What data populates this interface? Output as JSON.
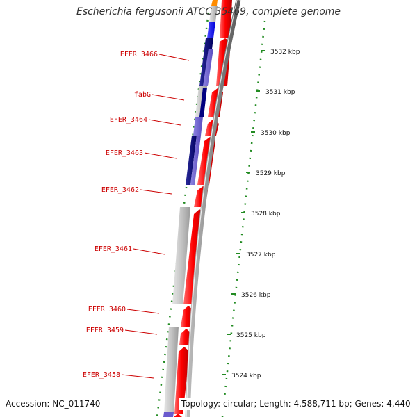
{
  "title": "Escherichia fergusonii ATCC 35469, complete genome",
  "accession": "Accession: NC_011740",
  "topology": "Topology: circular; Length: 4,588,711 bp; Genes: 4,440",
  "colors": {
    "forward_cds": "#ff0000",
    "reverse_blue": "#0000ff",
    "reverse_navy": "#000080",
    "reverse_lavender": "#6a5acd",
    "gray_feature": "#c0c0c0",
    "orange_feature": "#ff8c00",
    "ticks": "#228b22",
    "gene_label": "#cc0000",
    "backbone": "#808080"
  },
  "scale_labels": [
    "3532 kbp",
    "3531 kbp",
    "3530 kbp",
    "3529 kbp",
    "3528 kbp",
    "3527 kbp",
    "3526 kbp",
    "3525 kbp",
    "3524 kbp"
  ],
  "gene_labels": [
    "EFER_3466",
    "fabG",
    "EFER_3464",
    "EFER_3463",
    "EFER_3462",
    "EFER_3461",
    "EFER_3460",
    "EFER_3459",
    "EFER_3458"
  ]
}
